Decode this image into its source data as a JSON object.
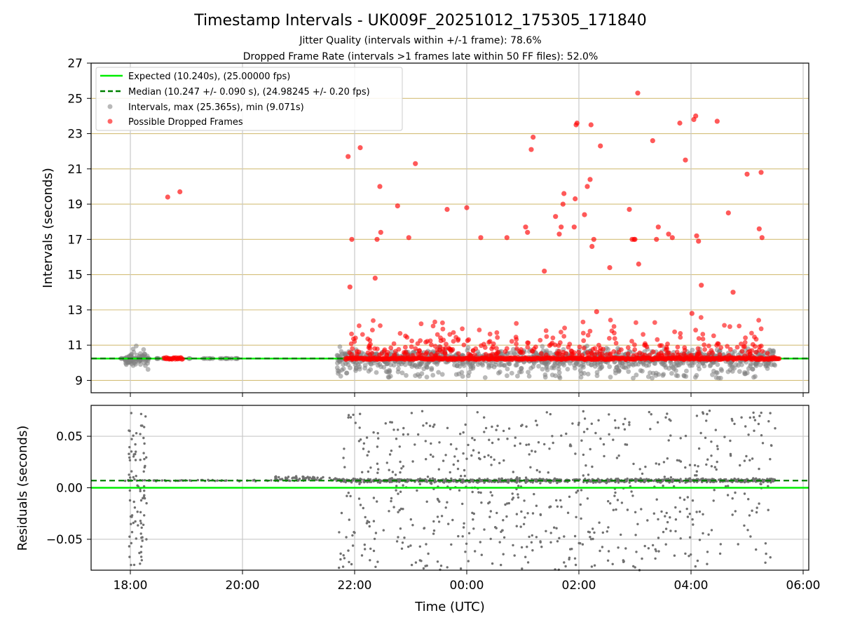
{
  "chart_data": [
    {
      "type": "scatter",
      "title": "Timestamp Intervals - UK009F_20251012_175305_171840",
      "subtitle_lines": [
        "Jitter Quality (intervals within +/-1 frame): 78.6%",
        "Dropped Frame Rate (intervals >1 frames late within 50 FF files): 52.0%"
      ],
      "ylabel": "Intervals (seconds)",
      "xlim": [
        "17:18",
        "06:06"
      ],
      "ylim": [
        8.3,
        27
      ],
      "yticks": [
        "9",
        "11",
        "13",
        "15",
        "17",
        "19",
        "21",
        "23",
        "25",
        "27"
      ],
      "grid": "on",
      "legend_placement": "upper-left",
      "legend": [
        "Expected (10.240s), (25.00000 fps)",
        "Median (10.247 +/- 0.090 s), (24.98245 +/- 0.20 fps)",
        "Intervals, max (25.365s), min (9.071s)",
        "Possible Dropped Frames"
      ],
      "expected_interval": 10.24,
      "median_interval": 10.247,
      "colors": {
        "expected": "#00ee00",
        "median": "#008000",
        "intervals": "#808080",
        "dropped": "#ff0000",
        "hgrid": "#d4bf7a",
        "vgrid": "#c8c8c8"
      },
      "series": [
        {
          "name": "Possible Dropped Frames",
          "points": [
            [
              "18:40",
              19.4
            ],
            [
              "18:53",
              19.7
            ],
            [
              "21:53",
              21.7
            ],
            [
              "21:55",
              14.3
            ],
            [
              "21:57",
              17.0
            ],
            [
              "22:06",
              22.2
            ],
            [
              "22:22",
              14.8
            ],
            [
              "22:24",
              17.0
            ],
            [
              "22:27",
              20.0
            ],
            [
              "22:28",
              17.4
            ],
            [
              "22:46",
              18.9
            ],
            [
              "22:58",
              17.1
            ],
            [
              "23:05",
              21.3
            ],
            [
              "23:39",
              18.7
            ],
            [
              "24:00",
              18.8
            ],
            [
              "24:15",
              17.1
            ],
            [
              "24:43",
              17.1
            ],
            [
              "25:03",
              17.7
            ],
            [
              "25:05",
              17.4
            ],
            [
              "25:09",
              22.1
            ],
            [
              "25:11",
              22.8
            ],
            [
              "25:23",
              15.2
            ],
            [
              "25:35",
              18.3
            ],
            [
              "25:39",
              17.3
            ],
            [
              "25:41",
              17.7
            ],
            [
              "25:43",
              19.0
            ],
            [
              "25:44",
              19.6
            ],
            [
              "25:55",
              17.7
            ],
            [
              "25:56",
              19.3
            ],
            [
              "25:57",
              23.5
            ],
            [
              "25:58",
              23.6
            ],
            [
              "26:06",
              18.4
            ],
            [
              "26:09",
              20.0
            ],
            [
              "26:12",
              20.4
            ],
            [
              "26:13",
              23.5
            ],
            [
              "26:14",
              16.6
            ],
            [
              "26:16",
              17.0
            ],
            [
              "26:19",
              12.9
            ],
            [
              "26:23",
              22.3
            ],
            [
              "26:33",
              15.4
            ],
            [
              "26:54",
              18.7
            ],
            [
              "26:57",
              17.0
            ],
            [
              "26:59",
              17.0
            ],
            [
              "27:00",
              17.0
            ],
            [
              "27:03",
              25.3
            ],
            [
              "27:04",
              15.6
            ],
            [
              "27:19",
              22.6
            ],
            [
              "27:23",
              17.0
            ],
            [
              "27:25",
              17.7
            ],
            [
              "27:36",
              17.3
            ],
            [
              "27:40",
              17.1
            ],
            [
              "27:48",
              23.6
            ],
            [
              "27:54",
              21.5
            ],
            [
              "28:01",
              12.8
            ],
            [
              "28:03",
              23.8
            ],
            [
              "28:05",
              24.0
            ],
            [
              "28:06",
              17.2
            ],
            [
              "28:08",
              16.9
            ],
            [
              "28:11",
              14.4
            ],
            [
              "28:28",
              23.7
            ],
            [
              "28:40",
              18.5
            ],
            [
              "28:45",
              14.0
            ],
            [
              "29:00",
              20.7
            ],
            [
              "29:13",
              17.6
            ],
            [
              "29:15",
              20.8
            ],
            [
              "29:16",
              17.1
            ]
          ]
        }
      ]
    },
    {
      "type": "scatter",
      "ylabel": "Residuals (seconds)",
      "xlabel": "Time (UTC)",
      "ylim": [
        -0.08,
        0.08
      ],
      "yticks": [
        "−0.05",
        "0.00",
        "0.05"
      ],
      "xticks": [
        "18:00",
        "20:00",
        "22:00",
        "00:00",
        "02:00",
        "04:00",
        "06:00"
      ],
      "grid": "on",
      "median_residual": 0.007,
      "expected_residual": 0.0
    }
  ]
}
